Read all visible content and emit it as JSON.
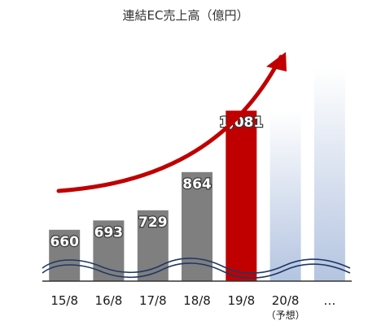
{
  "chart_data": {
    "type": "bar",
    "title": "連結EC売上高（億円）",
    "categories": [
      "15/8",
      "16/8",
      "17/8",
      "18/8",
      "19/8",
      "20/8",
      "…"
    ],
    "category_notes": [
      "",
      "",
      "",
      "",
      "",
      "（予想）",
      ""
    ],
    "values": [
      660,
      693,
      729,
      864,
      1081,
      null,
      null
    ],
    "value_labels": [
      "660",
      "693",
      "729",
      "864",
      "1,081",
      "",
      ""
    ],
    "bar_styles": [
      "actual",
      "actual",
      "actual",
      "actual",
      "highlight",
      "forecast",
      "forecast"
    ],
    "axis_break": true,
    "trend_arrow": "upward",
    "grid": false,
    "legend": "none"
  },
  "colors": {
    "actual": "#7f7f7f",
    "highlight": "#c00000",
    "forecast_top": "#ffffff",
    "forecast_bottom": "#b4c4e0",
    "arrow": "#c00000",
    "wave": "#1f3864",
    "axis": "#333333"
  }
}
